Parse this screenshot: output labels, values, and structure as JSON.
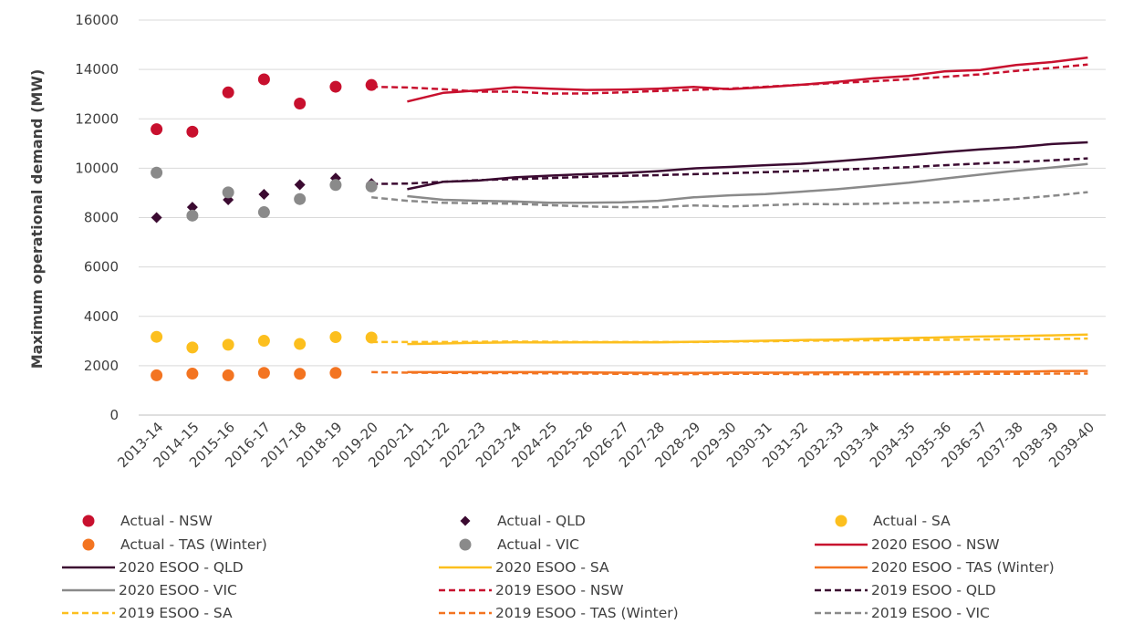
{
  "chart_data": {
    "type": "line",
    "title": "",
    "xlabel": "",
    "ylabel": "Maximum operational demand (MW)",
    "ylim": [
      0,
      16000
    ],
    "yticks": [
      0,
      2000,
      4000,
      6000,
      8000,
      10000,
      12000,
      14000,
      16000
    ],
    "grid": "horizontal",
    "legend_placement": "bottom",
    "categories": [
      "2013-14",
      "2014-15",
      "2015-16",
      "2016-17",
      "2017-18",
      "2018-19",
      "2019-20",
      "2020-21",
      "2021-22",
      "2022-23",
      "2023-24",
      "2024-25",
      "2025-26",
      "2026-27",
      "2027-28",
      "2028-29",
      "2029-30",
      "2030-31",
      "2031-32",
      "2032-33",
      "2033-34",
      "2034-35",
      "2035-36",
      "2036-37",
      "2037-38",
      "2038-39",
      "2039-40"
    ],
    "series": [
      {
        "name": "Actual - NSW",
        "kind": "scatter",
        "marker": "circle",
        "color": "#c8102e",
        "values": [
          11580,
          11480,
          13070,
          13600,
          12620,
          13300,
          13370,
          null,
          null,
          null,
          null,
          null,
          null,
          null,
          null,
          null,
          null,
          null,
          null,
          null,
          null,
          null,
          null,
          null,
          null,
          null,
          null
        ]
      },
      {
        "name": "Actual - QLD",
        "kind": "scatter",
        "marker": "diamond",
        "color": "#3b0a31",
        "values": [
          8000,
          8420,
          8720,
          8940,
          9330,
          9600,
          9380,
          null,
          null,
          null,
          null,
          null,
          null,
          null,
          null,
          null,
          null,
          null,
          null,
          null,
          null,
          null,
          null,
          null,
          null,
          null,
          null
        ]
      },
      {
        "name": "Actual - SA",
        "kind": "scatter",
        "marker": "circle",
        "color": "#fcbf1e",
        "values": [
          3170,
          2740,
          2850,
          3010,
          2880,
          3160,
          3140,
          null,
          null,
          null,
          null,
          null,
          null,
          null,
          null,
          null,
          null,
          null,
          null,
          null,
          null,
          null,
          null,
          null,
          null,
          null,
          null
        ]
      },
      {
        "name": "Actual - TAS (Winter)",
        "kind": "scatter",
        "marker": "circle",
        "color": "#f37421",
        "values": [
          1610,
          1680,
          1610,
          1710,
          1670,
          1710,
          null,
          null,
          null,
          null,
          null,
          null,
          null,
          null,
          null,
          null,
          null,
          null,
          null,
          null,
          null,
          null,
          null,
          null,
          null,
          null,
          null
        ]
      },
      {
        "name": "Actual - VIC",
        "kind": "scatter",
        "marker": "circle",
        "color": "#8a8a8a",
        "values": [
          9820,
          8080,
          9020,
          8220,
          8750,
          9320,
          9260,
          null,
          null,
          null,
          null,
          null,
          null,
          null,
          null,
          null,
          null,
          null,
          null,
          null,
          null,
          null,
          null,
          null,
          null,
          null,
          null
        ]
      },
      {
        "name": "2020 ESOO - NSW",
        "kind": "line",
        "dash": "solid",
        "color": "#c8102e",
        "values": [
          null,
          null,
          null,
          null,
          null,
          null,
          null,
          12700,
          13050,
          13150,
          13280,
          13220,
          13170,
          13180,
          13220,
          13290,
          13200,
          13280,
          13380,
          13500,
          13640,
          13740,
          13920,
          13980,
          14180,
          14300,
          14480
        ]
      },
      {
        "name": "2020 ESOO - QLD",
        "kind": "line",
        "dash": "solid",
        "color": "#3b0a31",
        "values": [
          null,
          null,
          null,
          null,
          null,
          null,
          null,
          9150,
          9450,
          9500,
          9630,
          9700,
          9760,
          9800,
          9880,
          9990,
          10050,
          10120,
          10180,
          10280,
          10400,
          10520,
          10650,
          10760,
          10850,
          10980,
          11050
        ]
      },
      {
        "name": "2020 ESOO - SA",
        "kind": "line",
        "dash": "solid",
        "color": "#fcbf1e",
        "values": [
          null,
          null,
          null,
          null,
          null,
          null,
          null,
          2880,
          2900,
          2930,
          2950,
          2940,
          2950,
          2950,
          2950,
          2970,
          2990,
          3010,
          3040,
          3060,
          3090,
          3120,
          3150,
          3180,
          3200,
          3230,
          3260
        ]
      },
      {
        "name": "2020 ESOO - TAS (Winter)",
        "kind": "line",
        "dash": "solid",
        "color": "#f37421",
        "values": [
          null,
          null,
          null,
          null,
          null,
          null,
          null,
          1740,
          1740,
          1740,
          1740,
          1740,
          1730,
          1720,
          1710,
          1710,
          1720,
          1720,
          1720,
          1730,
          1730,
          1740,
          1740,
          1760,
          1760,
          1780,
          1790
        ]
      },
      {
        "name": "2020 ESOO - VIC",
        "kind": "line",
        "dash": "solid",
        "color": "#8a8a8a",
        "values": [
          null,
          null,
          null,
          null,
          null,
          null,
          null,
          8870,
          8720,
          8680,
          8650,
          8600,
          8600,
          8620,
          8680,
          8820,
          8900,
          8950,
          9050,
          9150,
          9280,
          9410,
          9580,
          9740,
          9900,
          10030,
          10170
        ]
      },
      {
        "name": "2019 ESOO - NSW",
        "kind": "line",
        "dash": "dash",
        "color": "#c8102e",
        "values": [
          null,
          null,
          null,
          null,
          null,
          null,
          13300,
          13270,
          13200,
          13100,
          13100,
          13020,
          13030,
          13070,
          13130,
          13170,
          13220,
          13300,
          13380,
          13450,
          13520,
          13600,
          13700,
          13800,
          13940,
          14060,
          14200
        ]
      },
      {
        "name": "2019 ESOO - QLD",
        "kind": "line",
        "dash": "dash",
        "color": "#3b0a31",
        "values": [
          null,
          null,
          null,
          null,
          null,
          null,
          9360,
          9380,
          9450,
          9520,
          9560,
          9600,
          9650,
          9690,
          9720,
          9760,
          9800,
          9840,
          9890,
          9940,
          9990,
          10040,
          10120,
          10190,
          10250,
          10320,
          10400
        ]
      },
      {
        "name": "2019 ESOO - SA",
        "kind": "line",
        "dash": "dash",
        "color": "#fcbf1e",
        "values": [
          null,
          null,
          null,
          null,
          null,
          null,
          2960,
          2960,
          2960,
          2970,
          2980,
          2970,
          2960,
          2960,
          2960,
          2960,
          2980,
          2990,
          3010,
          3020,
          3030,
          3040,
          3050,
          3060,
          3070,
          3080,
          3100
        ]
      },
      {
        "name": "2019 ESOO - TAS (Winter)",
        "kind": "line",
        "dash": "dash",
        "color": "#f37421",
        "values": [
          null,
          null,
          null,
          null,
          null,
          null,
          1740,
          1720,
          1710,
          1700,
          1700,
          1690,
          1680,
          1670,
          1660,
          1660,
          1670,
          1670,
          1660,
          1660,
          1660,
          1660,
          1660,
          1670,
          1670,
          1680,
          1680
        ]
      },
      {
        "name": "2019 ESOO - VIC",
        "kind": "line",
        "dash": "dash",
        "color": "#8a8a8a",
        "values": [
          null,
          null,
          null,
          null,
          null,
          null,
          8820,
          8680,
          8600,
          8580,
          8560,
          8500,
          8450,
          8420,
          8420,
          8490,
          8450,
          8500,
          8550,
          8540,
          8560,
          8590,
          8620,
          8680,
          8760,
          8880,
          9030
        ]
      }
    ]
  }
}
